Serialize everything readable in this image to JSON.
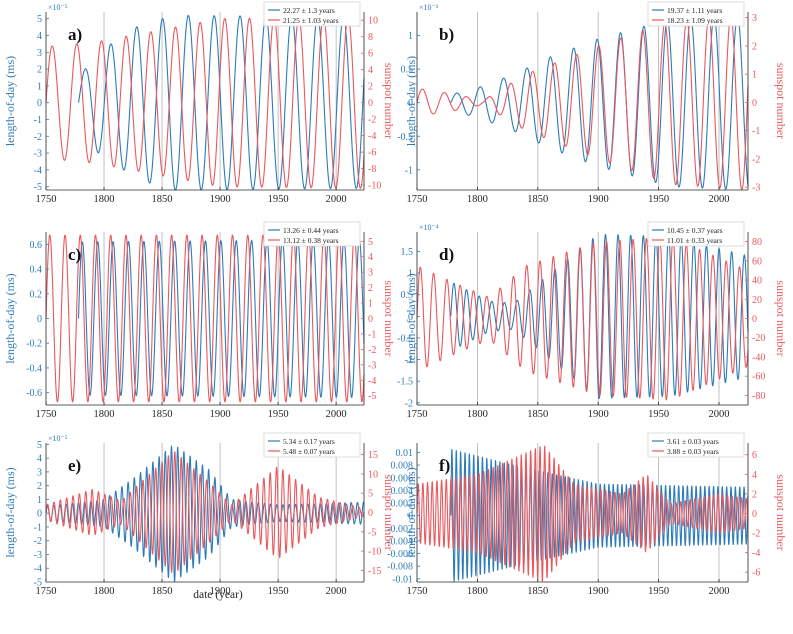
{
  "figure": {
    "xlabel": "date (year)",
    "colors": {
      "lod": "#2e7bb8",
      "ssn": "#e8595e",
      "grid": "#b3b3b3",
      "axis": "#262626"
    }
  },
  "chart_data": [
    {
      "panel": "a)",
      "type": "line",
      "xlim": [
        1750,
        2024
      ],
      "xticks": [
        1750,
        1800,
        1850,
        1900,
        1950,
        2000
      ],
      "ylabel_left": "length-of-day (ms)",
      "ylabel_right": "sunspot number",
      "left_exponent": "×10⁻⁵",
      "left_ylim": [
        -5.2,
        5.4
      ],
      "left_ticks": [
        -5,
        -4,
        -3,
        -2,
        -1,
        0,
        1,
        2,
        3,
        4,
        5
      ],
      "right_ylim": [
        -10.6,
        11
      ],
      "right_ticks": [
        -10,
        -8,
        -6,
        -4,
        -2,
        0,
        2,
        4,
        6,
        8,
        10
      ],
      "series": [
        {
          "name": "22.27 ± 1.3 years",
          "axis": "left",
          "period": 22.27,
          "start": 1778,
          "amplitude": [
            [
              1778,
              1.5
            ],
            [
              1795,
              3.0
            ],
            [
              1830,
              4.6
            ],
            [
              1860,
              5.2
            ],
            [
              2024,
              5.1
            ]
          ]
        },
        {
          "name": "21.25 ± 1.03 years",
          "axis": "right",
          "period": 21.25,
          "start": 1750,
          "amplitude": [
            [
              1750,
              6.8
            ],
            [
              1790,
              7.3
            ],
            [
              1840,
              8.6
            ],
            [
              1900,
              10.2
            ],
            [
              2024,
              10.4
            ]
          ]
        }
      ]
    },
    {
      "panel": "b)",
      "type": "line",
      "xlim": [
        1750,
        2024
      ],
      "xticks": [
        1750,
        1800,
        1850,
        1900,
        1950,
        2000
      ],
      "ylabel_left": "length-of-day (ms)",
      "ylabel_right": "sunspot number",
      "left_exponent": "×10⁻³",
      "left_ylim": [
        -1.3,
        1.35
      ],
      "left_ticks": [
        -1,
        -0.5,
        0,
        0.5,
        1
      ],
      "right_ylim": [
        -3.1,
        3.2
      ],
      "right_ticks": [
        -3,
        -2,
        -1,
        0,
        1,
        2,
        3
      ],
      "series": [
        {
          "name": "19.37 ± 1.11 years",
          "axis": "left",
          "period": 19.37,
          "start": 1778,
          "amplitude": [
            [
              1778,
              0.12
            ],
            [
              1800,
              0.22
            ],
            [
              1830,
              0.42
            ],
            [
              1860,
              0.68
            ],
            [
              1900,
              0.95
            ],
            [
              1960,
              1.25
            ],
            [
              2024,
              1.3
            ]
          ]
        },
        {
          "name": "18.23 ± 1.09 years",
          "axis": "right",
          "period": 18.23,
          "start": 1750,
          "amplitude": [
            [
              1750,
              0.5
            ],
            [
              1780,
              0.3
            ],
            [
              1805,
              0.08
            ],
            [
              1840,
              1.0
            ],
            [
              1900,
              2.0
            ],
            [
              1960,
              2.9
            ],
            [
              2024,
              3.1
            ]
          ]
        }
      ]
    },
    {
      "panel": "c)",
      "type": "line",
      "xlim": [
        1750,
        2024
      ],
      "xticks": [
        1750,
        1800,
        1850,
        1900,
        1950,
        2000
      ],
      "ylabel_left": "length-of-day (ms)",
      "ylabel_right": "sunspot number",
      "left_exponent": "",
      "left_ylim": [
        -0.7,
        0.7
      ],
      "left_ticks": [
        -0.6,
        -0.4,
        -0.2,
        0,
        0.2,
        0.4,
        0.6
      ],
      "right_ylim": [
        -5.6,
        5.6
      ],
      "right_ticks": [
        -5,
        -4,
        -3,
        -2,
        -1,
        0,
        1,
        2,
        3,
        4,
        5
      ],
      "series": [
        {
          "name": "13.26 ± 0.44 years",
          "axis": "left",
          "period": 13.26,
          "start": 1778,
          "amplitude": [
            [
              1778,
              0.62
            ],
            [
              2024,
              0.64
            ]
          ]
        },
        {
          "name": "13.12 ± 0.38 years",
          "axis": "right",
          "period": 13.12,
          "start": 1750,
          "amplitude": [
            [
              1750,
              5.4
            ],
            [
              2024,
              5.4
            ]
          ]
        }
      ]
    },
    {
      "panel": "d)",
      "type": "line",
      "xlim": [
        1750,
        2024
      ],
      "xticks": [
        1750,
        1800,
        1850,
        1900,
        1950,
        2000
      ],
      "ylabel_left": "length-of-day (ms)",
      "ylabel_right": "sunspot number",
      "left_exponent": "×10⁻⁴",
      "left_ylim": [
        -2.05,
        1.95
      ],
      "left_ticks": [
        -2,
        -1.5,
        -1,
        -0.5,
        0,
        0.5,
        1,
        1.5
      ],
      "right_ylim": [
        -90,
        90
      ],
      "right_ticks": [
        -80,
        -60,
        -40,
        -20,
        0,
        20,
        40,
        60,
        80
      ],
      "series": [
        {
          "name": "10.45 ± 0.37 years",
          "axis": "left",
          "period": 10.45,
          "start": 1778,
          "amplitude": [
            [
              1778,
              0.8
            ],
            [
              1810,
              0.35
            ],
            [
              1830,
              0.3
            ],
            [
              1860,
              1.0
            ],
            [
              1900,
              1.9
            ],
            [
              1960,
              1.85
            ],
            [
              2024,
              1.4
            ]
          ]
        },
        {
          "name": "11.01 ± 0.33 years",
          "axis": "right",
          "period": 11.01,
          "start": 1750,
          "amplitude": [
            [
              1750,
              55
            ],
            [
              1785,
              35
            ],
            [
              1810,
              22
            ],
            [
              1840,
              55
            ],
            [
              1900,
              80
            ],
            [
              1960,
              85
            ],
            [
              2024,
              50
            ]
          ]
        }
      ]
    },
    {
      "panel": "e)",
      "type": "line",
      "xlim": [
        1750,
        2024
      ],
      "xticks": [
        1750,
        1800,
        1850,
        1900,
        1950,
        2000
      ],
      "ylabel_left": "length-of-day (ms)",
      "ylabel_right": "sunspot number",
      "left_exponent": "×10⁻⁵",
      "left_ylim": [
        -5,
        5.1
      ],
      "left_ticks": [
        -5,
        -4,
        -3,
        -2,
        -1,
        0,
        1,
        2,
        3,
        4,
        5
      ],
      "right_ylim": [
        -18,
        18
      ],
      "right_ticks": [
        -15,
        -10,
        -5,
        0,
        5,
        10,
        15
      ],
      "series": [
        {
          "name": "5.34 ± 0.17 years",
          "axis": "left",
          "period": 5.34,
          "start": 1750,
          "amplitude": [
            [
              1750,
              0.5
            ],
            [
              1800,
              1.0
            ],
            [
              1825,
              2.5
            ],
            [
              1860,
              5.0
            ],
            [
              1890,
              3.2
            ],
            [
              1910,
              1.0
            ],
            [
              1950,
              0.6
            ],
            [
              2024,
              0.8
            ]
          ]
        },
        {
          "name": "5.48 ± 0.07 years",
          "axis": "right",
          "period": 5.48,
          "start": 1750,
          "amplitude": [
            [
              1750,
              2
            ],
            [
              1790,
              6
            ],
            [
              1815,
              3
            ],
            [
              1860,
              16
            ],
            [
              1890,
              8
            ],
            [
              1910,
              2
            ],
            [
              1950,
              12
            ],
            [
              1985,
              4
            ],
            [
              2024,
              1
            ]
          ]
        }
      ]
    },
    {
      "panel": "f)",
      "type": "line",
      "xlim": [
        1750,
        2024
      ],
      "xticks": [
        1750,
        1800,
        1850,
        1900,
        1950,
        2000
      ],
      "ylabel_left": "length-of-day (ms)",
      "ylabel_right": "sunspot number",
      "left_exponent": "",
      "left_ylim": [
        -0.0105,
        0.0115
      ],
      "left_ticks": [
        -0.01,
        -0.008,
        -0.006,
        -0.004,
        -0.002,
        0,
        0.002,
        0.004,
        0.006,
        0.008,
        0.01
      ],
      "right_ylim": [
        -7,
        7.2
      ],
      "right_ticks": [
        -6,
        -4,
        -2,
        0,
        2,
        4,
        6
      ],
      "series": [
        {
          "name": "3.61 ± 0.03 years",
          "axis": "left",
          "period": 3.61,
          "start": 1778,
          "amplitude": [
            [
              1778,
              0.0105
            ],
            [
              1830,
              0.008
            ],
            [
              1900,
              0.005
            ],
            [
              2024,
              0.0045
            ]
          ]
        },
        {
          "name": "3.88 ± 0.03 years",
          "axis": "right",
          "period": 3.88,
          "start": 1750,
          "amplitude": [
            [
              1750,
              3.0
            ],
            [
              1800,
              4.0
            ],
            [
              1855,
              7.0
            ],
            [
              1880,
              3.0
            ],
            [
              1920,
              2.0
            ],
            [
              1940,
              4.0
            ],
            [
              1960,
              1.0
            ],
            [
              2000,
              2.0
            ],
            [
              2024,
              1.5
            ]
          ]
        }
      ]
    }
  ]
}
